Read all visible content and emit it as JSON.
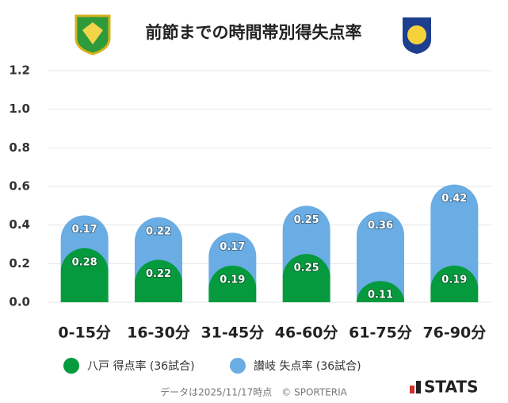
{
  "chart_data": {
    "type": "stacked_bar",
    "title": "前節までの時間帯別得失点率",
    "categories": [
      "0-15分",
      "16-30分",
      "31-45分",
      "46-60分",
      "61-75分",
      "76-90分"
    ],
    "series": [
      {
        "name": "八戸 得点率 (36試合)",
        "color": "#069a3e",
        "values": [
          0.28,
          0.22,
          0.19,
          0.25,
          0.11,
          0.19
        ]
      },
      {
        "name": "讃岐 失点率 (36試合)",
        "color": "#6aade4",
        "values": [
          0.17,
          0.22,
          0.17,
          0.25,
          0.36,
          0.42
        ]
      }
    ],
    "ylim": [
      0,
      1.2
    ],
    "yticks": [
      {
        "value": 0,
        "label": "0.0"
      },
      0.2,
      0.4,
      0.6,
      0.8,
      {
        "value": 1,
        "label": "1.0"
      },
      1.2
    ],
    "grid": true,
    "footer": "データは2025/11/17時点　© SPORTERIA",
    "brand": "STATS"
  }
}
